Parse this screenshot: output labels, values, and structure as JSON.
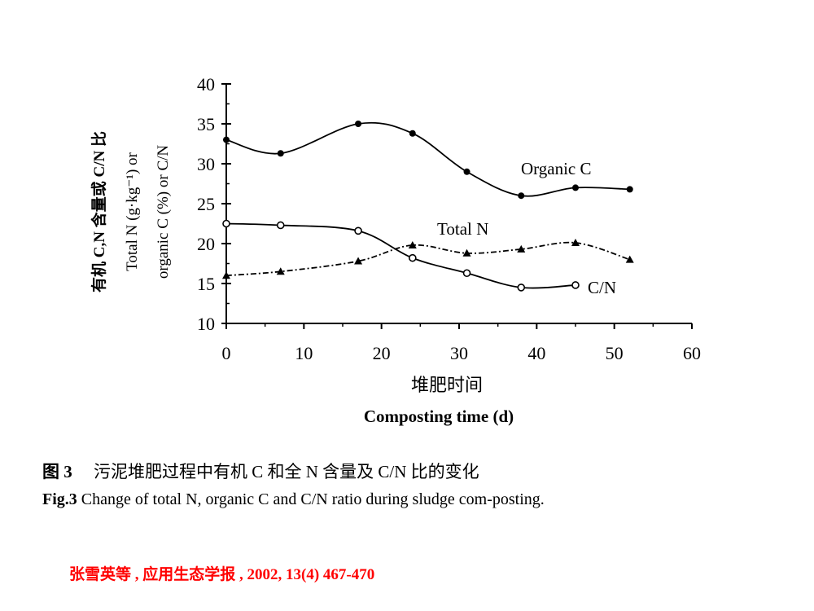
{
  "chart_data": {
    "type": "line",
    "xlabel_cn": "堆肥时间",
    "xlabel_en": "Composting time (d)",
    "ylabel_lines": [
      "有机 C,N 含量或 C/N 比",
      "Total N (g·kg⁻¹) or",
      "organic C (%) or C/N"
    ],
    "xlim": [
      0,
      60
    ],
    "ylim": [
      10,
      40
    ],
    "xticks": [
      0,
      10,
      20,
      30,
      40,
      50,
      60
    ],
    "yticks": [
      10,
      15,
      20,
      25,
      30,
      35,
      40
    ],
    "series": [
      {
        "name": "Organic C",
        "marker": "filled-circle",
        "line": "solid",
        "x": [
          0,
          7,
          17,
          24,
          31,
          38,
          45,
          52
        ],
        "y": [
          33,
          31.3,
          35,
          33.8,
          29,
          26,
          27,
          26.8
        ]
      },
      {
        "name": "Total N",
        "marker": "filled-triangle",
        "line": "dash-dot",
        "x": [
          0,
          7,
          17,
          24,
          31,
          38,
          45,
          52
        ],
        "y": [
          16,
          16.5,
          17.8,
          19.8,
          18.8,
          19.3,
          20.1,
          18
        ]
      },
      {
        "name": "C/N",
        "marker": "open-circle",
        "line": "solid",
        "x": [
          0,
          7,
          17,
          24,
          31,
          38,
          45
        ],
        "y": [
          22.5,
          22.3,
          21.6,
          18.2,
          16.3,
          14.5,
          14.8
        ]
      }
    ]
  },
  "caption": {
    "cn_label": "图 3",
    "cn_text": "污泥堆肥过程中有机 C 和全 N 含量及 C/N 比的变化",
    "en_label": "Fig.3",
    "en_text": "Change of total N, organic C and C/N ratio during sludge com-posting."
  },
  "citation": "张雪英等 , 应用生态学报 , 2002, 13(4) 467-470"
}
